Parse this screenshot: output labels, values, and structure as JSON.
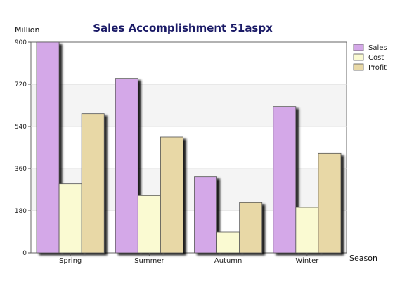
{
  "chart_data": {
    "type": "bar",
    "title": "Sales Accomplishment 51aspx",
    "ylabel": "Million",
    "xlabel": "Season",
    "categories": [
      "Spring",
      "Summer",
      "Autumn",
      "Winter"
    ],
    "series": [
      {
        "name": "Sales",
        "color": "#d4a8e8",
        "values": [
          900,
          745,
          325,
          625
        ]
      },
      {
        "name": "Cost",
        "color": "#fafad2",
        "values": [
          295,
          245,
          90,
          195
        ]
      },
      {
        "name": "Profit",
        "color": "#e8d8a6",
        "values": [
          595,
          495,
          215,
          425
        ]
      }
    ],
    "ylim": [
      0,
      900
    ],
    "yticks": [
      0,
      180,
      360,
      540,
      720,
      900
    ],
    "grid": true,
    "legend": "top-right"
  }
}
